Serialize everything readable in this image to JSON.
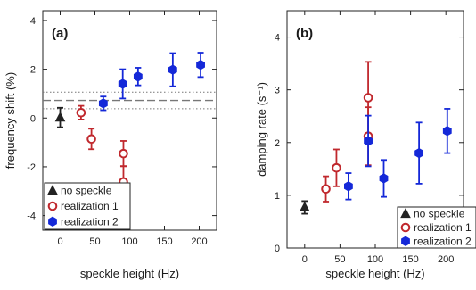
{
  "colors": {
    "no_speckle": "#222222",
    "realization_1": "#c0282d",
    "realization_2": "#1428d8",
    "reference_band": "#777777",
    "axes": "#222222"
  },
  "chart_data": [
    {
      "type": "scatter",
      "panel_label": "(a)",
      "xlabel": "speckle height (Hz)",
      "ylabel": "frequency shift (%)",
      "xlim": [
        -25,
        225
      ],
      "ylim": [
        -4.6,
        4.4
      ],
      "xticks": [
        0,
        50,
        100,
        150,
        200
      ],
      "yticks": [
        -4,
        -2,
        0,
        2,
        4
      ],
      "xtick_labels": [
        "0",
        "50",
        "100",
        "150",
        "200"
      ],
      "ytick_labels": [
        "-4",
        "-2",
        "0",
        "2",
        "4"
      ],
      "reference_lines": {
        "dashed": 0.72,
        "dotted": [
          0.38,
          1.06
        ]
      },
      "legend": {
        "placement": "bottom-left",
        "entries": [
          "no speckle",
          "realization 1",
          "realization 2"
        ]
      },
      "series": [
        {
          "name": "no speckle",
          "marker": "triangle",
          "filled": true,
          "points": [
            {
              "x": 0,
              "y": 0.02,
              "err": 0.4
            }
          ]
        },
        {
          "name": "realization 1",
          "marker": "circle",
          "filled": false,
          "points": [
            {
              "x": 30,
              "y": 0.22,
              "err": 0.28
            },
            {
              "x": 45,
              "y": -0.86,
              "err": 0.42
            },
            {
              "x": 91,
              "y": -1.46,
              "err": 0.52
            },
            {
              "x": 91,
              "y": -2.62,
              "err": 0.65
            }
          ]
        },
        {
          "name": "realization 2",
          "marker": "hexagon",
          "filled": true,
          "points": [
            {
              "x": 62,
              "y": 0.6,
              "err": 0.28
            },
            {
              "x": 90,
              "y": 1.4,
              "err": 0.6
            },
            {
              "x": 112,
              "y": 1.7,
              "err": 0.36
            },
            {
              "x": 162,
              "y": 1.98,
              "err": 0.68
            },
            {
              "x": 202,
              "y": 2.18,
              "err": 0.5
            }
          ]
        }
      ]
    },
    {
      "type": "scatter",
      "panel_label": "(b)",
      "xlabel": "speckle height (Hz)",
      "ylabel": "damping rate (s⁻¹)",
      "xlim": [
        -25,
        225
      ],
      "ylim": [
        0,
        4.5
      ],
      "xticks": [
        0,
        50,
        100,
        150,
        200
      ],
      "yticks": [
        0,
        1,
        2,
        3,
        4
      ],
      "xtick_labels": [
        "0",
        "50",
        "100",
        "150",
        "200"
      ],
      "ytick_labels": [
        "0",
        "1",
        "2",
        "3",
        "4"
      ],
      "legend": {
        "placement": "bottom-right",
        "entries": [
          "no speckle",
          "realization 1",
          "realization 2"
        ]
      },
      "series": [
        {
          "name": "no speckle",
          "marker": "triangle",
          "filled": true,
          "points": [
            {
              "x": 0,
              "y": 0.77,
              "err": 0.12
            }
          ]
        },
        {
          "name": "realization 1",
          "marker": "circle",
          "filled": false,
          "points": [
            {
              "x": 30,
              "y": 1.12,
              "err": 0.24
            },
            {
              "x": 45,
              "y": 1.52,
              "err": 0.35
            },
            {
              "x": 90,
              "y": 2.85,
              "err": 0.68
            },
            {
              "x": 90,
              "y": 2.12,
              "err": 0.55
            }
          ]
        },
        {
          "name": "realization 2",
          "marker": "hexagon",
          "filled": true,
          "points": [
            {
              "x": 62,
              "y": 1.17,
              "err": 0.25
            },
            {
              "x": 90,
              "y": 2.03,
              "err": 0.48
            },
            {
              "x": 112,
              "y": 1.32,
              "err": 0.35
            },
            {
              "x": 162,
              "y": 1.8,
              "err": 0.58
            },
            {
              "x": 202,
              "y": 2.22,
              "err": 0.42
            }
          ]
        }
      ]
    }
  ]
}
